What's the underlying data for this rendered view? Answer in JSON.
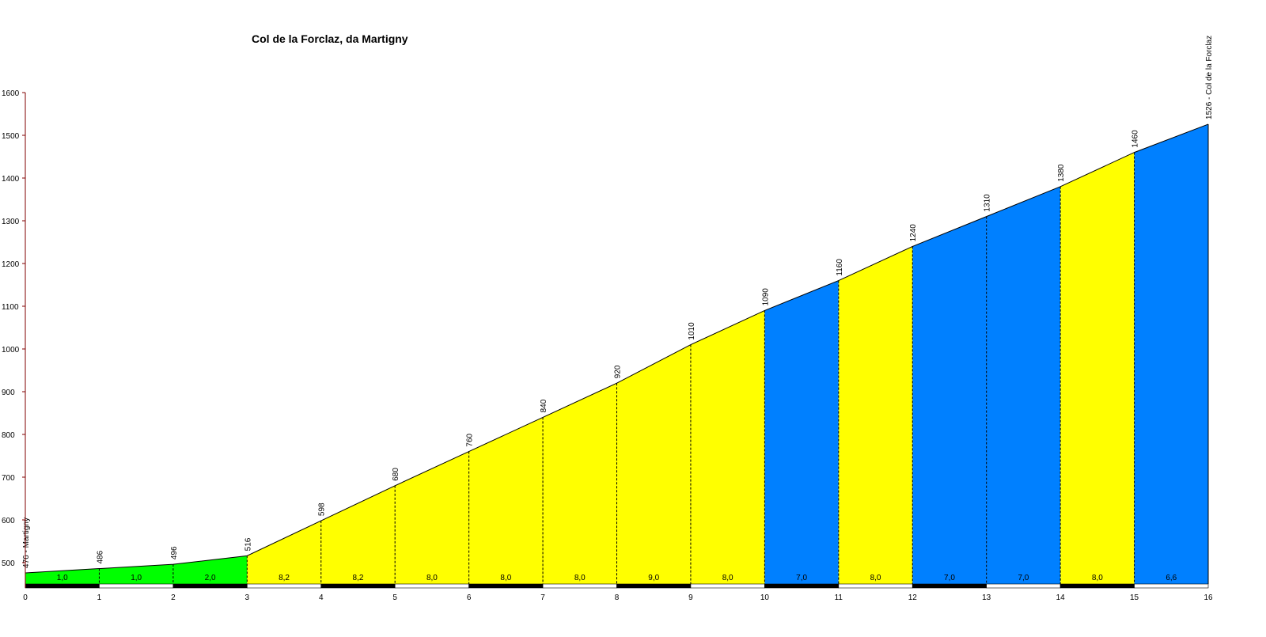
{
  "chart_data": {
    "type": "area",
    "title": "Col de la Forclaz, da Martigny",
    "xlabel": "",
    "ylabel": "",
    "xlim": [
      0,
      16
    ],
    "ylim": [
      450,
      1600
    ],
    "x_ticks": [
      "0",
      "1",
      "2",
      "3",
      "4",
      "5",
      "6",
      "7",
      "8",
      "9",
      "10",
      "11",
      "12",
      "13",
      "14",
      "15",
      "16"
    ],
    "y_ticks": [
      "500",
      "600",
      "700",
      "800",
      "900",
      "1000",
      "1100",
      "1200",
      "1300",
      "1400",
      "1500",
      "1600"
    ],
    "points": [
      {
        "km": 0,
        "elev": 476,
        "label": "476 - Martigny"
      },
      {
        "km": 1,
        "elev": 486,
        "label": "486"
      },
      {
        "km": 2,
        "elev": 496,
        "label": "496"
      },
      {
        "km": 3,
        "elev": 516,
        "label": "516"
      },
      {
        "km": 4,
        "elev": 598,
        "label": "598"
      },
      {
        "km": 5,
        "elev": 680,
        "label": "680"
      },
      {
        "km": 6,
        "elev": 760,
        "label": "760"
      },
      {
        "km": 7,
        "elev": 840,
        "label": "840"
      },
      {
        "km": 8,
        "elev": 920,
        "label": "920"
      },
      {
        "km": 9,
        "elev": 1010,
        "label": "1010"
      },
      {
        "km": 10,
        "elev": 1090,
        "label": "1090"
      },
      {
        "km": 11,
        "elev": 1160,
        "label": "1160"
      },
      {
        "km": 12,
        "elev": 1240,
        "label": "1240"
      },
      {
        "km": 13,
        "elev": 1310,
        "label": "1310"
      },
      {
        "km": 14,
        "elev": 1380,
        "label": "1380"
      },
      {
        "km": 15,
        "elev": 1460,
        "label": "1460"
      },
      {
        "km": 16,
        "elev": 1526,
        "label": "1526 - Col de la Forclaz"
      }
    ],
    "segments": [
      {
        "from": 0,
        "to": 1,
        "gradient": "1,0",
        "color": "#00ff00"
      },
      {
        "from": 1,
        "to": 2,
        "gradient": "1,0",
        "color": "#00ff00"
      },
      {
        "from": 2,
        "to": 3,
        "gradient": "2,0",
        "color": "#00ff00"
      },
      {
        "from": 3,
        "to": 4,
        "gradient": "8,2",
        "color": "#ffff00"
      },
      {
        "from": 4,
        "to": 5,
        "gradient": "8,2",
        "color": "#ffff00"
      },
      {
        "from": 5,
        "to": 6,
        "gradient": "8,0",
        "color": "#ffff00"
      },
      {
        "from": 6,
        "to": 7,
        "gradient": "8,0",
        "color": "#ffff00"
      },
      {
        "from": 7,
        "to": 8,
        "gradient": "8,0",
        "color": "#ffff00"
      },
      {
        "from": 8,
        "to": 9,
        "gradient": "9,0",
        "color": "#ffff00"
      },
      {
        "from": 9,
        "to": 10,
        "gradient": "8,0",
        "color": "#ffff00"
      },
      {
        "from": 10,
        "to": 11,
        "gradient": "7,0",
        "color": "#0080ff"
      },
      {
        "from": 11,
        "to": 12,
        "gradient": "8,0",
        "color": "#ffff00"
      },
      {
        "from": 12,
        "to": 13,
        "gradient": "7,0",
        "color": "#0080ff"
      },
      {
        "from": 13,
        "to": 14,
        "gradient": "7,0",
        "color": "#0080ff"
      },
      {
        "from": 14,
        "to": 15,
        "gradient": "8,0",
        "color": "#ffff00"
      },
      {
        "from": 15,
        "to": 16,
        "gradient": "6,6",
        "color": "#0080ff"
      }
    ],
    "colors": {
      "axis": "#800000",
      "outline": "#000000",
      "scale_dark": "#000000",
      "scale_light": "#ffffff"
    }
  }
}
